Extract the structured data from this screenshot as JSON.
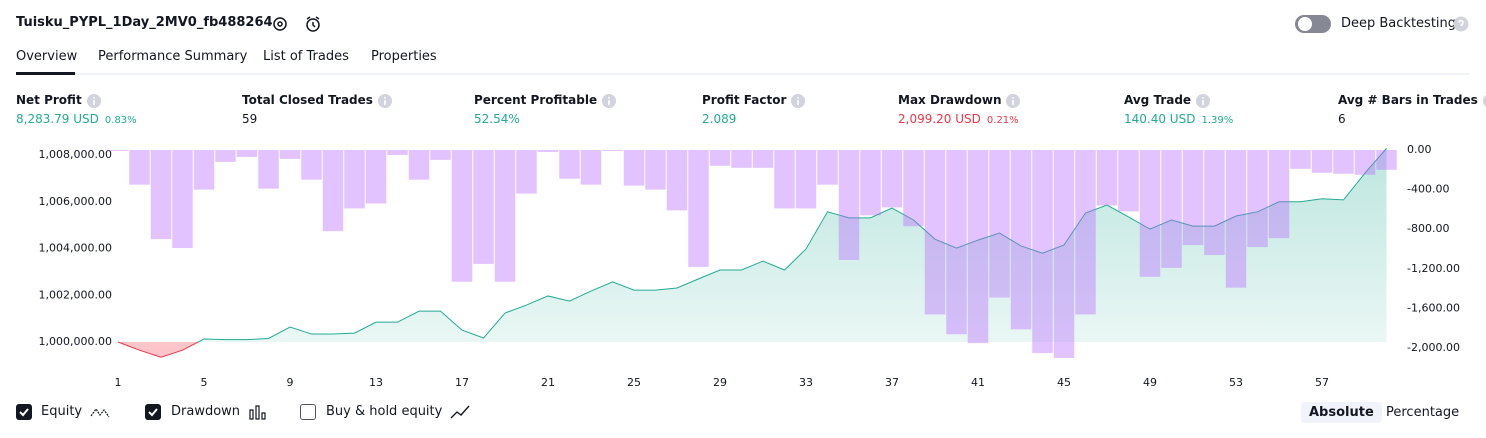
{
  "header": {
    "title": "Tuisku_PYPL_1Day_2MV0_fb488264",
    "toggle_label": "Deep Backtesting"
  },
  "tabs": [
    "Overview",
    "Performance Summary",
    "List of Trades",
    "Properties"
  ],
  "metrics": [
    {
      "label": "Net Profit",
      "value": "8,283.79 USD",
      "sub": "0.83%",
      "color": "#22ab94"
    },
    {
      "label": "Total Closed Trades",
      "value": "59",
      "color": "#131722"
    },
    {
      "label": "Percent Profitable",
      "value": "52.54%",
      "color": "#22ab94"
    },
    {
      "label": "Profit Factor",
      "value": "2.089",
      "color": "#22ab94"
    },
    {
      "label": "Max Drawdown",
      "value": "2,099.20 USD",
      "sub": "0.21%",
      "color": "#f23645"
    },
    {
      "label": "Avg Trade",
      "value": "140.40 USD",
      "sub": "1.39%",
      "color": "#22ab94"
    },
    {
      "label": "Avg # Bars in Trades",
      "value": "6",
      "color": "#131722"
    }
  ],
  "chart_data": {
    "type": "line",
    "x": [
      1,
      2,
      3,
      4,
      5,
      6,
      7,
      8,
      9,
      10,
      11,
      12,
      13,
      14,
      15,
      16,
      17,
      18,
      19,
      20,
      21,
      22,
      23,
      24,
      25,
      26,
      27,
      28,
      29,
      30,
      31,
      32,
      33,
      34,
      35,
      36,
      37,
      38,
      39,
      40,
      41,
      42,
      43,
      44,
      45,
      46,
      47,
      48,
      49,
      50,
      51,
      52,
      53,
      54,
      55,
      56,
      57,
      58,
      59,
      60
    ],
    "xlim": [
      0.5,
      60.5
    ],
    "xticks": [
      1,
      5,
      9,
      13,
      17,
      21,
      25,
      29,
      33,
      37,
      41,
      45,
      49,
      53,
      57
    ],
    "ylim": [
      999230,
      1008300
    ],
    "yticks": [
      {
        "value": 1000000,
        "label": "1,000,000.00"
      },
      {
        "value": 1002000,
        "label": "1,002,000.00"
      },
      {
        "value": 1004000,
        "label": "1,004,000.00"
      },
      {
        "value": 1006000,
        "label": "1,006,000.00"
      },
      {
        "value": 1008000,
        "label": "1,008,000.00"
      }
    ],
    "y2lim": [
      -2120,
      20
    ],
    "y2ticks": [
      {
        "value": 0,
        "label": "0.00"
      },
      {
        "value": -400,
        "label": "-400.00"
      },
      {
        "value": -800,
        "label": "-800.00"
      },
      {
        "value": -1200,
        "label": "-1,200.00"
      },
      {
        "value": -1600,
        "label": "-1,600.00"
      },
      {
        "value": -2000,
        "label": "-2,000.00"
      }
    ],
    "baseline": 1000000,
    "series": [
      {
        "name": "Equity",
        "type": "area",
        "color": "#22ab94",
        "negative_color": "#f23645",
        "values": [
          1000000,
          999650,
          999350,
          999650,
          1000130,
          1000100,
          1000100,
          1000150,
          1000640,
          1000340,
          1000340,
          1000380,
          1000850,
          1000850,
          1001320,
          1001320,
          1000510,
          1000170,
          1001240,
          1001580,
          1001970,
          1001750,
          1002180,
          1002570,
          1002220,
          1002220,
          1002310,
          1002700,
          1003080,
          1003080,
          1003460,
          1003080,
          1003980,
          1005570,
          1005310,
          1005310,
          1005730,
          1005220,
          1004400,
          1004020,
          1004360,
          1004660,
          1004110,
          1003800,
          1004150,
          1005520,
          1005860,
          1005350,
          1004830,
          1005220,
          1004960,
          1004960,
          1005390,
          1005570,
          1006000,
          1006000,
          1006130,
          1006080,
          1007230,
          1008283.79
        ]
      },
      {
        "name": "Drawdown",
        "type": "bar",
        "axis": "y2",
        "color": "#ba68ff",
        "values": [
          0,
          -350,
          -900,
          -990,
          -400,
          -120,
          -70,
          -390,
          -90,
          -300,
          -820,
          -590,
          -540,
          -50,
          -300,
          -100,
          -1330,
          -1150,
          -1330,
          -440,
          -20,
          -290,
          -350,
          0,
          -360,
          -400,
          -610,
          -1180,
          -160,
          -180,
          -180,
          -590,
          -590,
          -350,
          -1110,
          -660,
          -580,
          -770,
          -1660,
          -1860,
          -1950,
          -1490,
          -1810,
          -2050,
          -2099.2,
          -1660,
          -560,
          -620,
          -1280,
          -1190,
          -960,
          -1060,
          -1390,
          -980,
          -890,
          -190,
          -230,
          -240,
          -250,
          -200
        ]
      }
    ]
  },
  "legend_options": [
    {
      "label": "Equity",
      "checked": true
    },
    {
      "label": "Drawdown",
      "checked": true
    },
    {
      "label": "Buy & hold equity",
      "checked": false
    }
  ],
  "view_buttons": [
    "Absolute",
    "Percentage"
  ]
}
